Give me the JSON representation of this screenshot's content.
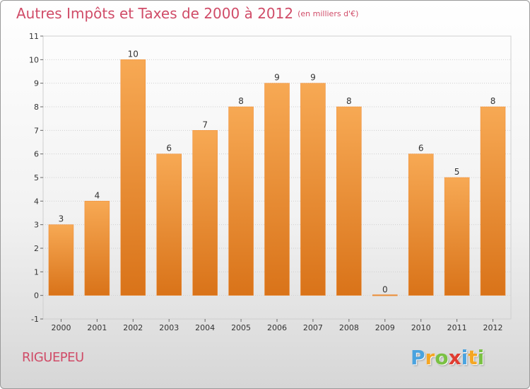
{
  "chart_data": {
    "type": "bar",
    "title": "Autres Impôts et Taxes de 2000 à 2012",
    "subtitle": "(en milliers d'€)",
    "categories": [
      "2000",
      "2001",
      "2002",
      "2003",
      "2004",
      "2005",
      "2006",
      "2007",
      "2008",
      "2009",
      "2010",
      "2011",
      "2012"
    ],
    "values": [
      3,
      4,
      10,
      6,
      7,
      8,
      9,
      9,
      8,
      0,
      6,
      5,
      8
    ],
    "ylim": [
      -1,
      11
    ],
    "yticks": [
      "-1",
      "0",
      "1",
      "2",
      "3",
      "4",
      "5",
      "6",
      "7",
      "8",
      "9",
      "10",
      "11"
    ],
    "grid": true,
    "bar_color": "#f08a30",
    "bar_color_light": "#f7a954",
    "bar_color_dark": "#d97319"
  },
  "location": "RIGUEPEU",
  "logo": {
    "letters": [
      "P",
      "r",
      "o",
      "x",
      "i",
      "t",
      "i"
    ],
    "colors": [
      "#4aa3df",
      "#f5a623",
      "#7ac143",
      "#e03c31",
      "#4aa3df",
      "#f5a623",
      "#7ac143"
    ]
  },
  "colors": {
    "title": "#d04c68",
    "grid": "#cfcfcf",
    "axis_text": "#333333"
  }
}
